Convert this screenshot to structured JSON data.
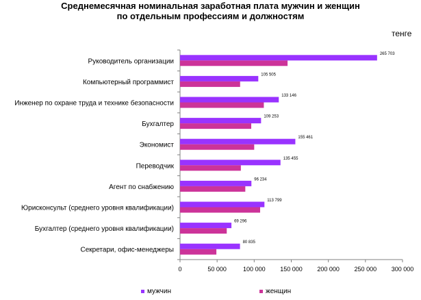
{
  "chart_data": {
    "type": "bar",
    "orientation": "horizontal",
    "title": [
      "Среднемесячная номинальная заработная плата мужчин и женщин",
      "по отдельным профессиям и должностям"
    ],
    "unit": "тенге",
    "categories": [
      "Руководитель организации",
      "Компьютерный программист",
      "Инженер по охране труда и технике безопасности",
      "Бухгалтер",
      "Экономист",
      "Переводчик",
      "Агент по снабжению",
      "Юрисконсульт (среднего уровня квалификации)",
      "Бухгалтер (среднего уровня квалификации)",
      "Секретари, офис-менеджеры"
    ],
    "series": [
      {
        "name": "мужчин",
        "color": "#9933ff",
        "values": [
          265703,
          105505,
          133146,
          109253,
          155461,
          135455,
          96234,
          113799,
          69296,
          80835
        ],
        "labels": [
          "265 703",
          "105 505",
          "133 146",
          "109 253",
          "155 461",
          "135 455",
          "96 234",
          "113 799",
          "69 296",
          "80 835"
        ]
      },
      {
        "name": "женщин",
        "color": "#cc3399",
        "values": [
          145000,
          81000,
          113000,
          96000,
          100000,
          82000,
          88000,
          108000,
          63000,
          49000
        ]
      }
    ],
    "xlim": [
      0,
      300000
    ],
    "xticks": [
      0,
      50000,
      100000,
      150000,
      200000,
      250000,
      300000
    ],
    "xtick_labels": [
      "0",
      "50 000",
      "100 000",
      "150 000",
      "200 000",
      "250 000",
      "300 000"
    ],
    "grid": false,
    "legend_position": "bottom"
  }
}
